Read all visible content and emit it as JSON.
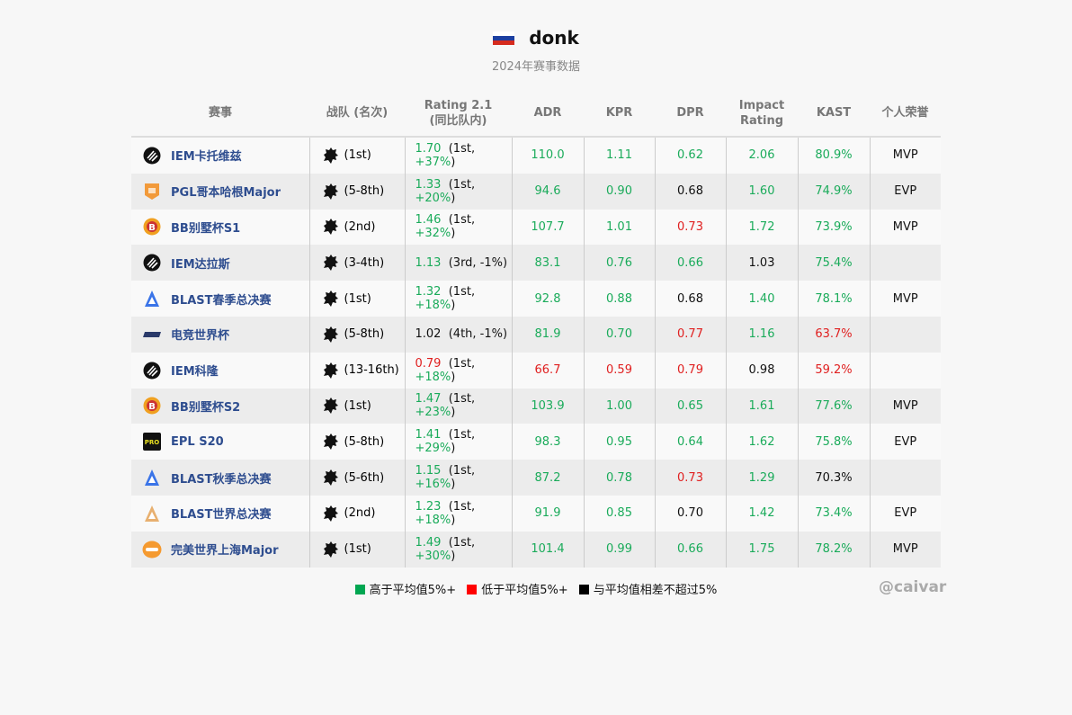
{
  "header": {
    "player": "donk",
    "flag": "russia-flag",
    "subtitle": "2024年赛事数据"
  },
  "columns": [
    "赛事",
    "战队 (名次)",
    "Rating 2.1\n(同比队内)",
    "ADR",
    "KPR",
    "DPR",
    "Impact\nRating",
    "KAST",
    "个人荣誉"
  ],
  "colors": {
    "g": "#1aab5a",
    "r": "#e02020",
    "k": "#111111",
    "event_name": "#2e4d8f"
  },
  "rows": [
    {
      "icon": "iem",
      "event": "IEM卡托维兹",
      "place": "(1st)",
      "rating": [
        "1.70",
        "g"
      ],
      "rel_rank": "1st, ",
      "rel_pct": [
        "+37%",
        "g"
      ],
      "adr": [
        "110.0",
        "g"
      ],
      "kpr": [
        "1.11",
        "g"
      ],
      "dpr": [
        "0.62",
        "g"
      ],
      "impact": [
        "2.06",
        "g"
      ],
      "kast": [
        "80.9%",
        "g"
      ],
      "honor": "MVP"
    },
    {
      "icon": "pgl",
      "event": "PGL哥本哈根Major",
      "place": "(5-8th)",
      "rating": [
        "1.33",
        "g"
      ],
      "rel_rank": "1st, ",
      "rel_pct": [
        "+20%",
        "g"
      ],
      "adr": [
        "94.6",
        "g"
      ],
      "kpr": [
        "0.90",
        "g"
      ],
      "dpr": [
        "0.68",
        "k"
      ],
      "impact": [
        "1.60",
        "g"
      ],
      "kast": [
        "74.9%",
        "g"
      ],
      "honor": "EVP"
    },
    {
      "icon": "bb",
      "event": "BB别墅杯S1",
      "place": "(2nd)",
      "rating": [
        "1.46",
        "g"
      ],
      "rel_rank": "1st, ",
      "rel_pct": [
        "+32%",
        "g"
      ],
      "adr": [
        "107.7",
        "g"
      ],
      "kpr": [
        "1.01",
        "g"
      ],
      "dpr": [
        "0.73",
        "r"
      ],
      "impact": [
        "1.72",
        "g"
      ],
      "kast": [
        "73.9%",
        "g"
      ],
      "honor": "MVP"
    },
    {
      "icon": "iem",
      "event": "IEM达拉斯",
      "place": "(3-4th)",
      "rating": [
        "1.13",
        "g"
      ],
      "rel_rank": "3rd, ",
      "rel_pct": [
        "-1%",
        "k"
      ],
      "adr": [
        "83.1",
        "g"
      ],
      "kpr": [
        "0.76",
        "g"
      ],
      "dpr": [
        "0.66",
        "g"
      ],
      "impact": [
        "1.03",
        "k"
      ],
      "kast": [
        "75.4%",
        "g"
      ],
      "honor": ""
    },
    {
      "icon": "blast",
      "event": "BLAST春季总决赛",
      "place": "(1st)",
      "rating": [
        "1.32",
        "g"
      ],
      "rel_rank": "1st, ",
      "rel_pct": [
        "+18%",
        "g"
      ],
      "adr": [
        "92.8",
        "g"
      ],
      "kpr": [
        "0.88",
        "g"
      ],
      "dpr": [
        "0.68",
        "k"
      ],
      "impact": [
        "1.40",
        "g"
      ],
      "kast": [
        "78.1%",
        "g"
      ],
      "honor": "MVP"
    },
    {
      "icon": "ewc",
      "event": "电竞世界杯",
      "place": "(5-8th)",
      "rating": [
        "1.02",
        "k"
      ],
      "rel_rank": "4th, ",
      "rel_pct": [
        "-1%",
        "k"
      ],
      "adr": [
        "81.9",
        "g"
      ],
      "kpr": [
        "0.70",
        "g"
      ],
      "dpr": [
        "0.77",
        "r"
      ],
      "impact": [
        "1.16",
        "g"
      ],
      "kast": [
        "63.7%",
        "r"
      ],
      "honor": ""
    },
    {
      "icon": "iem",
      "event": "IEM科隆",
      "place": "(13-16th)",
      "rating": [
        "0.79",
        "r"
      ],
      "rel_rank": "1st, ",
      "rel_pct": [
        "+18%",
        "g"
      ],
      "adr": [
        "66.7",
        "r"
      ],
      "kpr": [
        "0.59",
        "r"
      ],
      "dpr": [
        "0.79",
        "r"
      ],
      "impact": [
        "0.98",
        "k"
      ],
      "kast": [
        "59.2%",
        "r"
      ],
      "honor": ""
    },
    {
      "icon": "bb",
      "event": "BB别墅杯S2",
      "place": "(1st)",
      "rating": [
        "1.47",
        "g"
      ],
      "rel_rank": "1st, ",
      "rel_pct": [
        "+23%",
        "g"
      ],
      "adr": [
        "103.9",
        "g"
      ],
      "kpr": [
        "1.00",
        "g"
      ],
      "dpr": [
        "0.65",
        "g"
      ],
      "impact": [
        "1.61",
        "g"
      ],
      "kast": [
        "77.6%",
        "g"
      ],
      "honor": "MVP"
    },
    {
      "icon": "epl",
      "event": "EPL S20",
      "place": "(5-8th)",
      "rating": [
        "1.41",
        "g"
      ],
      "rel_rank": "1st, ",
      "rel_pct": [
        "+29%",
        "g"
      ],
      "adr": [
        "98.3",
        "g"
      ],
      "kpr": [
        "0.95",
        "g"
      ],
      "dpr": [
        "0.64",
        "g"
      ],
      "impact": [
        "1.62",
        "g"
      ],
      "kast": [
        "75.8%",
        "g"
      ],
      "honor": "EVP"
    },
    {
      "icon": "blast",
      "event": "BLAST秋季总决赛",
      "place": "(5-6th)",
      "rating": [
        "1.15",
        "g"
      ],
      "rel_rank": "1st, ",
      "rel_pct": [
        "+16%",
        "g"
      ],
      "adr": [
        "87.2",
        "g"
      ],
      "kpr": [
        "0.78",
        "g"
      ],
      "dpr": [
        "0.73",
        "r"
      ],
      "impact": [
        "1.29",
        "g"
      ],
      "kast": [
        "70.3%",
        "k"
      ],
      "honor": ""
    },
    {
      "icon": "blast-gold",
      "event": "BLAST世界总决赛",
      "place": "(2nd)",
      "rating": [
        "1.23",
        "g"
      ],
      "rel_rank": "1st, ",
      "rel_pct": [
        "+18%",
        "g"
      ],
      "adr": [
        "91.9",
        "g"
      ],
      "kpr": [
        "0.85",
        "g"
      ],
      "dpr": [
        "0.70",
        "k"
      ],
      "impact": [
        "1.42",
        "g"
      ],
      "kast": [
        "73.4%",
        "g"
      ],
      "honor": "EVP"
    },
    {
      "icon": "pw",
      "event": "完美世界上海Major",
      "place": "(1st)",
      "rating": [
        "1.49",
        "g"
      ],
      "rel_rank": "1st, ",
      "rel_pct": [
        "+30%",
        "g"
      ],
      "adr": [
        "101.4",
        "g"
      ],
      "kpr": [
        "0.99",
        "g"
      ],
      "dpr": [
        "0.66",
        "g"
      ],
      "impact": [
        "1.75",
        "g"
      ],
      "kast": [
        "78.2%",
        "g"
      ],
      "honor": "MVP"
    }
  ],
  "legend": [
    {
      "label": "高于平均值5%+",
      "color": "#00a651"
    },
    {
      "label": "低于平均值5%+",
      "color": "#ff0000"
    },
    {
      "label": "与平均值相差不超过5%",
      "color": "#000000"
    }
  ],
  "watermark": "@caivar"
}
